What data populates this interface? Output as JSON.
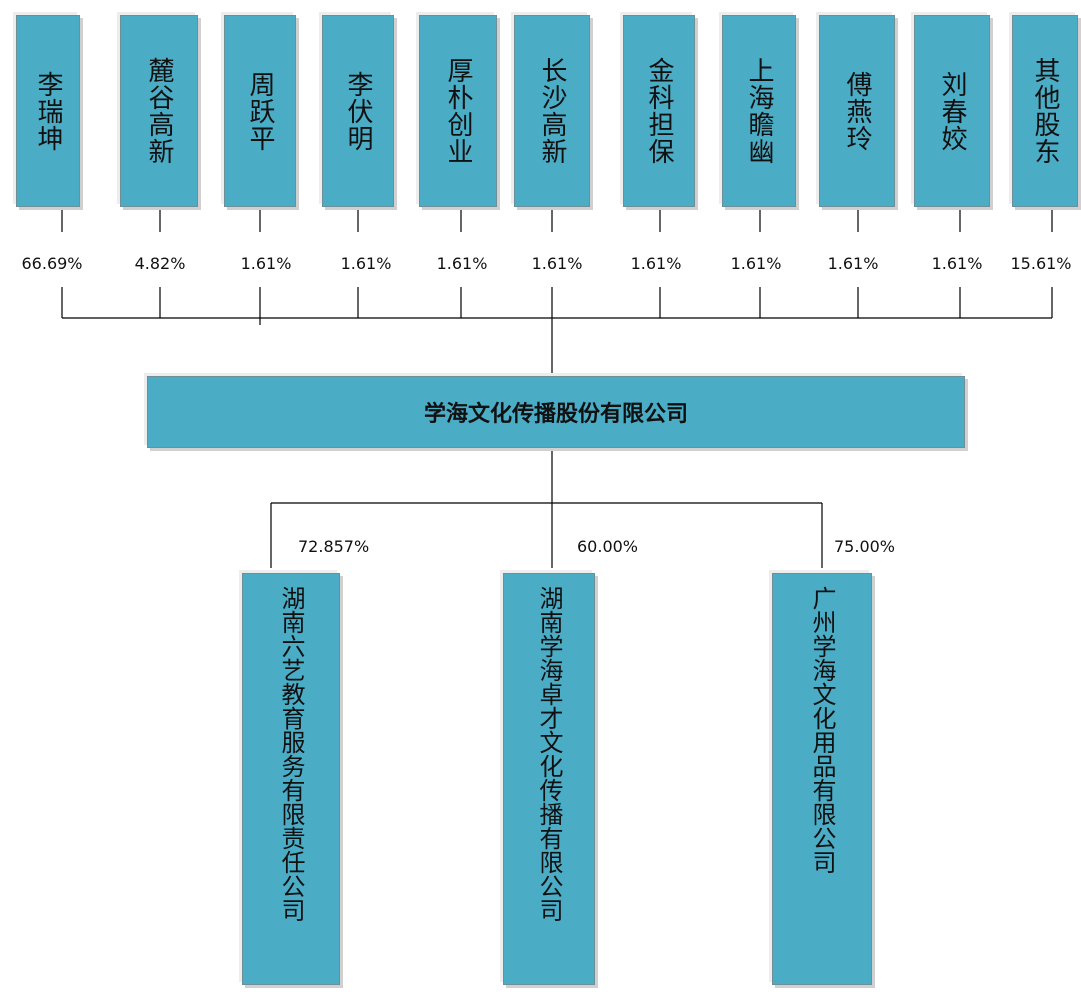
{
  "shareholders": [
    {
      "name": "李瑞坤",
      "pct": "66.69%"
    },
    {
      "name": "麓谷高新",
      "pct": "4.82%"
    },
    {
      "name": "周跃平",
      "pct": "1.61%"
    },
    {
      "name": "李伏明",
      "pct": "1.61%"
    },
    {
      "name": "厚朴创业",
      "pct": "1.61%"
    },
    {
      "name": "长沙高新",
      "pct": "1.61%"
    },
    {
      "name": "金科担保",
      "pct": "1.61%"
    },
    {
      "name": "上海瞻幽",
      "pct": "1.61%"
    },
    {
      "name": "傅燕玲",
      "pct": "1.61%"
    },
    {
      "name": "刘春姣",
      "pct": "1.61%"
    },
    {
      "name": "其他股东",
      "pct": "15.61%"
    }
  ],
  "company": "学海文化传播股份有限公司",
  "subsidiaries": [
    {
      "name": "湖南六艺教育服务有限责任公司",
      "pct": "72.857%"
    },
    {
      "name": "湖南学海卓才文化传播有限公司",
      "pct": "60.00%"
    },
    {
      "name": "广州学海文化用品有限公司",
      "pct": "75.00%"
    }
  ],
  "colors": {
    "box": "#4bacc6",
    "line": "#000000"
  }
}
